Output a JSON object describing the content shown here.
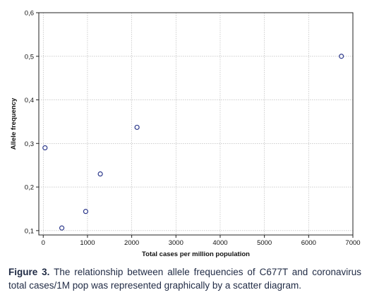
{
  "chart_data": {
    "type": "scatter",
    "xlabel": "Total cases per million population",
    "ylabel": "Allele frequency",
    "xlim": [
      -100,
      7000
    ],
    "ylim": [
      0.09,
      0.6
    ],
    "x_ticks": [
      0,
      1000,
      2000,
      3000,
      4000,
      5000,
      6000,
      7000
    ],
    "x_tick_labels": [
      "0",
      "1000",
      "2000",
      "3000",
      "4000",
      "5000",
      "6000",
      "7000"
    ],
    "y_ticks": [
      0.1,
      0.2,
      0.3,
      0.4,
      0.5,
      0.6
    ],
    "y_tick_labels": [
      "0,1",
      "0,2",
      "0,3",
      "0,4",
      "0,5",
      "0,6"
    ],
    "grid": true,
    "points": [
      {
        "x": 40,
        "y": 0.29
      },
      {
        "x": 420,
        "y": 0.106
      },
      {
        "x": 960,
        "y": 0.144
      },
      {
        "x": 1290,
        "y": 0.23
      },
      {
        "x": 2120,
        "y": 0.337
      },
      {
        "x": 6740,
        "y": 0.5
      }
    ],
    "marker_color": "#2e3a8c",
    "grid_color": "#b0b0b0"
  },
  "caption": {
    "label": "Figure 3.",
    "text": " The relationship between allele frequencies of C677T and coronavirus total cases/1M pop was represented graphically by a scatter diagram."
  }
}
